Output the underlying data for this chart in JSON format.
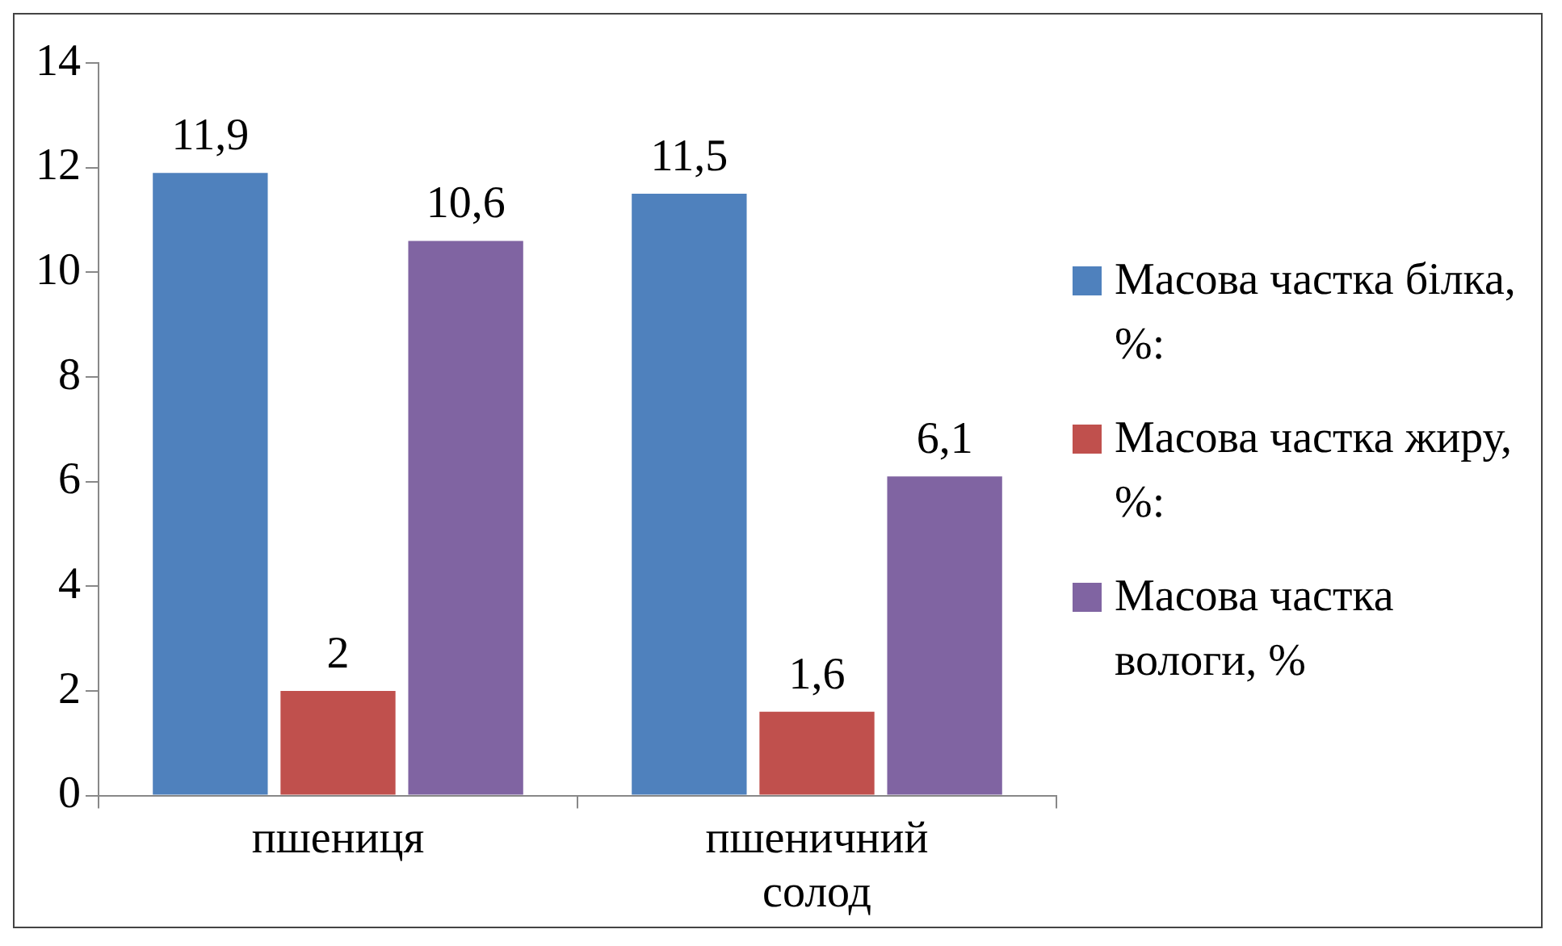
{
  "chart_data": {
    "type": "bar",
    "categories": [
      "пшениця",
      "пшеничний солод"
    ],
    "series": [
      {
        "name": "Масова частка білка, %:",
        "color": "#4f81bd",
        "values": [
          11.9,
          11.5
        ],
        "value_labels": [
          "11,9",
          "11,5"
        ]
      },
      {
        "name": "Масова частка жиру, %:",
        "color": "#c0504d",
        "values": [
          2,
          1.6
        ],
        "value_labels": [
          "2",
          "1,6"
        ]
      },
      {
        "name": "Масова частка вологи, %",
        "color": "#8064a2",
        "values": [
          10.6,
          6.1
        ],
        "value_labels": [
          "10,6",
          "6,1"
        ]
      }
    ],
    "ylim": [
      0,
      14
    ],
    "yticks": [
      0,
      2,
      4,
      6,
      8,
      10,
      12,
      14
    ],
    "grid": false,
    "legend": "right"
  }
}
